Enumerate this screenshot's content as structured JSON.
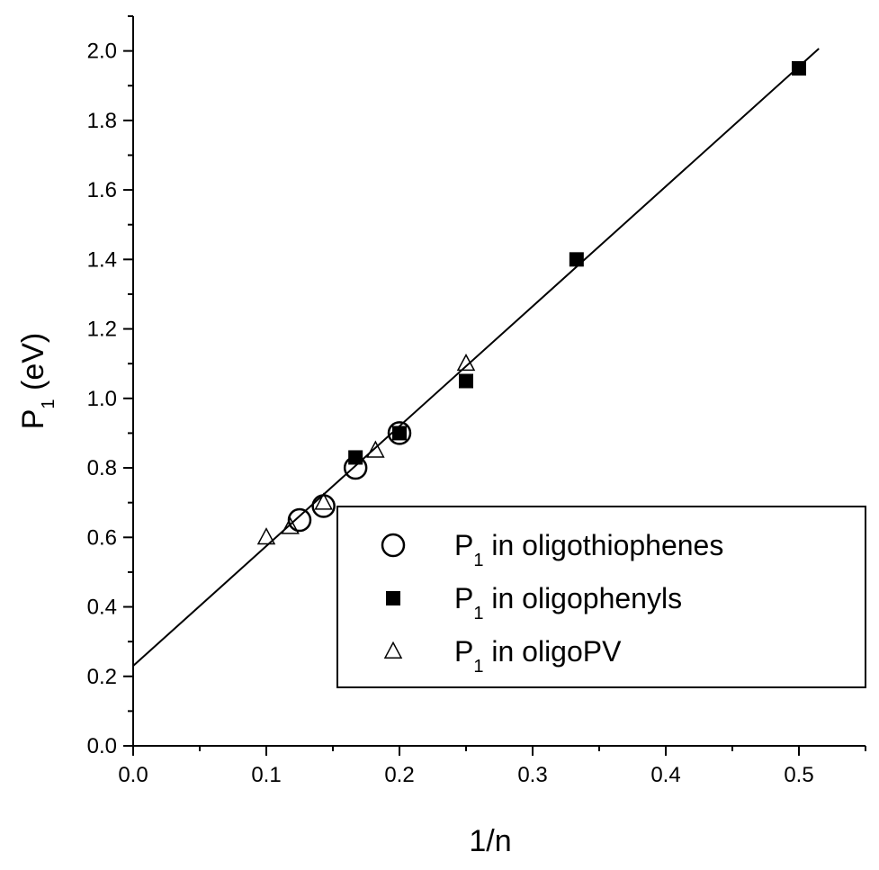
{
  "chart_data": {
    "type": "scatter",
    "title": "",
    "xlabel": "1/n",
    "ylabel_parts": {
      "main": "P",
      "sub": "1",
      "unit": " (eV)"
    },
    "xlim": [
      0.0,
      0.55
    ],
    "ylim": [
      0.0,
      2.1
    ],
    "x_ticks": [
      "0.0",
      "0.1",
      "0.2",
      "0.3",
      "0.4",
      "0.5"
    ],
    "x_tick_values": [
      0.0,
      0.1,
      0.2,
      0.3,
      0.4,
      0.5
    ],
    "y_ticks": [
      "0.0",
      "0.2",
      "0.4",
      "0.6",
      "0.8",
      "1.0",
      "1.2",
      "1.4",
      "1.6",
      "1.8",
      "2.0"
    ],
    "y_tick_values": [
      0.0,
      0.2,
      0.4,
      0.6,
      0.8,
      1.0,
      1.2,
      1.4,
      1.6,
      1.8,
      2.0
    ],
    "grid": false,
    "legend_position": "bottom-right",
    "series": [
      {
        "name": "P1 in oligothiophenes",
        "label_main": "P",
        "label_sub": "1",
        "label_rest": " in oligothiophenes",
        "marker": "open-circle",
        "x": [
          0.125,
          0.143,
          0.167,
          0.2
        ],
        "y": [
          0.65,
          0.69,
          0.8,
          0.9
        ]
      },
      {
        "name": "P1 in oligophenyls",
        "label_main": "P",
        "label_sub": "1",
        "label_rest": " in oligophenyls",
        "marker": "filled-square",
        "x": [
          0.167,
          0.2,
          0.25,
          0.333,
          0.5
        ],
        "y": [
          0.83,
          0.9,
          1.05,
          1.4,
          1.95
        ]
      },
      {
        "name": "P1 in oligoPV",
        "label_main": "P",
        "label_sub": "1",
        "label_rest": " in oligoPV",
        "marker": "open-triangle",
        "x": [
          0.1,
          0.118,
          0.143,
          0.182,
          0.25
        ],
        "y": [
          0.6,
          0.63,
          0.7,
          0.85,
          1.1
        ]
      }
    ],
    "fit_line": {
      "intercept": 0.23,
      "slope": 3.45,
      "x_range": [
        0.0,
        0.515
      ]
    }
  }
}
